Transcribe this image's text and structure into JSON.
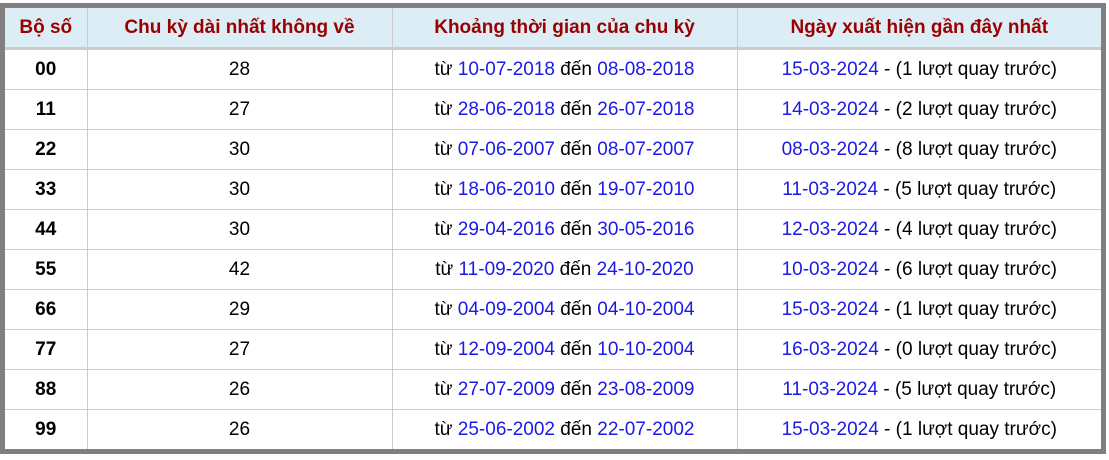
{
  "headers": [
    "Bộ số",
    "Chu kỳ dài nhất không về",
    "Khoảng thời gian của chu kỳ",
    "Ngày xuất hiện gần đây nhất"
  ],
  "labels": {
    "from": "từ",
    "to": "đến",
    "sep": " - "
  },
  "rows": [
    {
      "pair": "00",
      "cycle": "28",
      "start": "10-07-2018",
      "end": "08-08-2018",
      "last": "15-03-2024",
      "ago": "(1 lượt quay trước)"
    },
    {
      "pair": "11",
      "cycle": "27",
      "start": "28-06-2018",
      "end": "26-07-2018",
      "last": "14-03-2024",
      "ago": "(2 lượt quay trước)"
    },
    {
      "pair": "22",
      "cycle": "30",
      "start": "07-06-2007",
      "end": "08-07-2007",
      "last": "08-03-2024",
      "ago": "(8 lượt quay trước)"
    },
    {
      "pair": "33",
      "cycle": "30",
      "start": "18-06-2010",
      "end": "19-07-2010",
      "last": "11-03-2024",
      "ago": "(5 lượt quay trước)"
    },
    {
      "pair": "44",
      "cycle": "30",
      "start": "29-04-2016",
      "end": "30-05-2016",
      "last": "12-03-2024",
      "ago": "(4 lượt quay trước)"
    },
    {
      "pair": "55",
      "cycle": "42",
      "start": "11-09-2020",
      "end": "24-10-2020",
      "last": "10-03-2024",
      "ago": "(6 lượt quay trước)"
    },
    {
      "pair": "66",
      "cycle": "29",
      "start": "04-09-2004",
      "end": "04-10-2004",
      "last": "15-03-2024",
      "ago": "(1 lượt quay trước)"
    },
    {
      "pair": "77",
      "cycle": "27",
      "start": "12-09-2004",
      "end": "10-10-2004",
      "last": "16-03-2024",
      "ago": "(0 lượt quay trước)"
    },
    {
      "pair": "88",
      "cycle": "26",
      "start": "27-07-2009",
      "end": "23-08-2009",
      "last": "11-03-2024",
      "ago": "(5 lượt quay trước)"
    },
    {
      "pair": "99",
      "cycle": "26",
      "start": "25-06-2002",
      "end": "22-07-2002",
      "last": "15-03-2024",
      "ago": "(1 lượt quay trước)"
    }
  ],
  "colors": {
    "header_text": "#9a0000",
    "header_bg": "#dcedf6",
    "date": "#1a1ae6",
    "frame": "#808080"
  }
}
